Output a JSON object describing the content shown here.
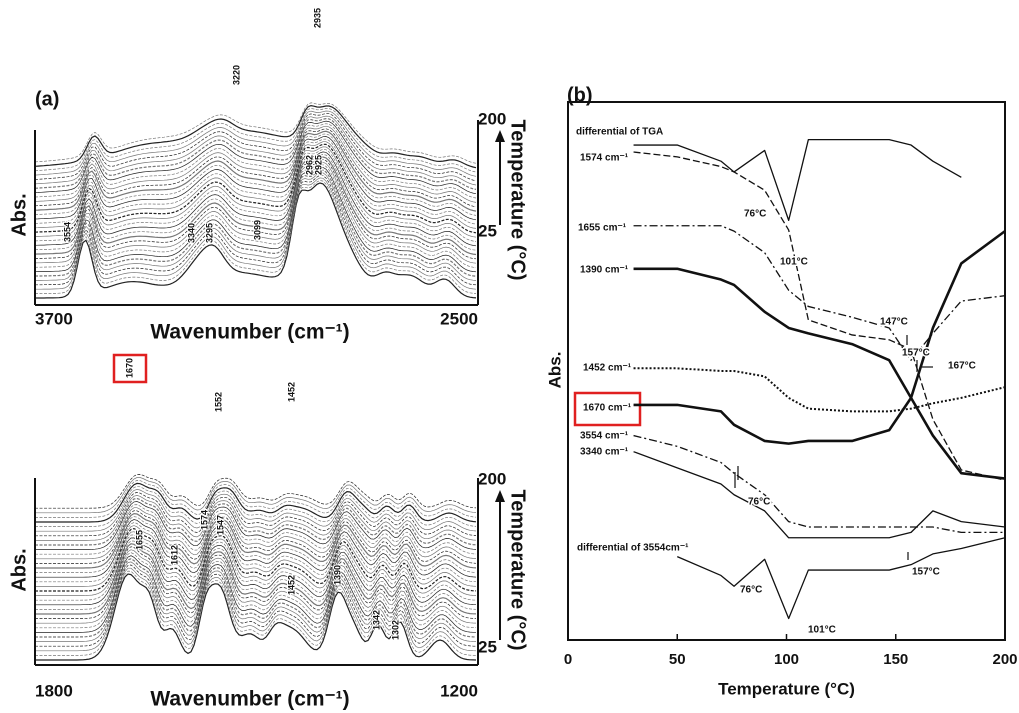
{
  "panel_a": {
    "label": "(a)",
    "top": {
      "y_label": "Abs.",
      "x_label": "Wavenumber (cm⁻¹)",
      "x_ticks": [
        "3700",
        "2500"
      ],
      "temp_label": "Temperature (°C)",
      "temp_ticks": [
        "200",
        "25"
      ],
      "peaks": [
        "3220",
        "2935",
        "2962",
        "2925",
        "3554",
        "3340",
        "3295",
        "3099"
      ]
    },
    "bottom": {
      "y_label": "Abs.",
      "x_label": "Wavenumber (cm⁻¹)",
      "x_ticks": [
        "1800",
        "1200"
      ],
      "temp_label": "Temperature (°C)",
      "temp_ticks": [
        "200",
        "25"
      ],
      "peaks": [
        "1670",
        "1552",
        "1452",
        "1655",
        "1612",
        "1574",
        "1547",
        "1452",
        "1390",
        "1342",
        "1302"
      ]
    }
  },
  "chart_data": {
    "type": "line",
    "label": "(b)",
    "x_label": "Temperature (°C)",
    "y_label": "Abs.",
    "xlim": [
      0,
      200
    ],
    "xticks": [
      0,
      50,
      100,
      150,
      200
    ],
    "ylim": [
      0,
      100
    ],
    "x": [
      30,
      50,
      70,
      76,
      90,
      101,
      110,
      130,
      147,
      157,
      167,
      180,
      200
    ],
    "series": [
      {
        "name": "differential of TGA",
        "color": "#111111",
        "style": "solid",
        "values": [
          92,
          92,
          89,
          87,
          91,
          78,
          93,
          93,
          93,
          92,
          89,
          86,
          null
        ]
      },
      {
        "name": "1574 cm⁻¹",
        "color": "#111111",
        "style": "dashed",
        "values": [
          90.7,
          89.8,
          88,
          87,
          83.6,
          76.2,
          59.5,
          56.7,
          55.8,
          54,
          41,
          31.6,
          29.7
        ]
      },
      {
        "name": "1655 cm⁻¹",
        "color": "#111111",
        "style": "dashdot",
        "values": [
          77,
          77,
          77,
          76,
          72,
          65,
          62,
          60,
          58,
          52,
          57,
          63,
          64
        ]
      },
      {
        "name": "1390 cm⁻¹",
        "color": "#111111",
        "style": "thick",
        "values": [
          69,
          69,
          67,
          66,
          61,
          58,
          57,
          55,
          52,
          45,
          38,
          31,
          30
        ]
      },
      {
        "name": "1452 cm⁻¹",
        "color": "#111111",
        "style": "dotted",
        "values": [
          50.5,
          50.5,
          50,
          50,
          49,
          45,
          43,
          42.5,
          42.5,
          43,
          44,
          45,
          47
        ]
      },
      {
        "name": "1670 cm⁻¹",
        "color": "#111111",
        "style": "thick",
        "values": [
          43.7,
          43.7,
          42.5,
          40,
          37,
          36.5,
          37,
          37,
          39,
          45,
          58,
          70,
          76
        ]
      },
      {
        "name": "3554 cm⁻¹",
        "color": "#111111",
        "style": "dashdot",
        "values": [
          38,
          36,
          33,
          31,
          27,
          22,
          21,
          21,
          21,
          21,
          21,
          20,
          20
        ]
      },
      {
        "name": "3340 cm⁻¹",
        "color": "#111111",
        "style": "solid",
        "values": [
          35,
          32,
          29,
          27,
          24,
          19,
          19,
          19,
          19,
          20,
          24,
          22,
          21
        ]
      },
      {
        "name": "differential of 3554cm⁻¹",
        "color": "#111111",
        "style": "solid",
        "values": [
          null,
          15.5,
          12,
          10,
          15,
          4,
          13,
          13,
          13,
          14,
          16,
          17,
          19
        ]
      }
    ],
    "annotations": [
      "76°C",
      "101°C",
      "147°C",
      "157°C",
      "167°C",
      "76°C",
      "157°C",
      "76°C",
      "101°C"
    ]
  }
}
